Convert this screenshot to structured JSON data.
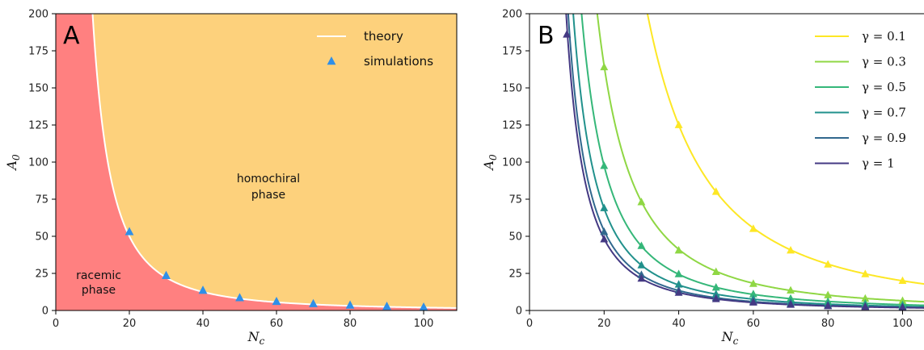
{
  "chart_data": [
    {
      "type": "line",
      "panel_label": "A",
      "xlabel": "N_c",
      "ylabel": "A_0",
      "xlim": [
        0,
        109
      ],
      "ylim": [
        0,
        200
      ],
      "xticks": [
        0,
        20,
        40,
        60,
        80,
        100
      ],
      "yticks": [
        0,
        25,
        50,
        75,
        100,
        125,
        150,
        175,
        200
      ],
      "grid": false,
      "legend_position": "top-right",
      "region_colors": {
        "racemic": "#ff8080",
        "homochiral": "#fdd17c"
      },
      "regions": {
        "racemic": [
          "racemic",
          "phase"
        ],
        "homochiral": [
          "homochiral",
          "phase"
        ]
      },
      "series": [
        {
          "name": "theory",
          "kind": "line",
          "color": "#ffffff",
          "formula": "A0 = 20000 / Nc^2"
        },
        {
          "name": "simulations",
          "kind": "scatter",
          "marker": "triangle",
          "color": "#2f8fe8",
          "x": [
            20,
            30,
            40,
            50,
            60,
            70,
            80,
            90,
            100
          ],
          "y": [
            53,
            23.5,
            13.5,
            8.5,
            6,
            4.5,
            3.5,
            2.7,
            2.2
          ]
        }
      ]
    },
    {
      "type": "line",
      "panel_label": "B",
      "xlabel": "N_c",
      "ylabel": "A_0",
      "xlim": [
        0,
        109
      ],
      "ylim": [
        0,
        200
      ],
      "xticks": [
        0,
        20,
        40,
        60,
        80,
        100
      ],
      "yticks": [
        0,
        25,
        50,
        75,
        100,
        125,
        150,
        175,
        200
      ],
      "grid": false,
      "legend_position": "top-right",
      "x": [
        10,
        20,
        30,
        40,
        50,
        60,
        70,
        80,
        90,
        100
      ],
      "series": [
        {
          "name": "γ = 0.1",
          "color": "#fde725",
          "theory_coefficient": 200000,
          "y": [
            null,
            null,
            null,
            125,
            80,
            55,
            40.5,
            31,
            24.5,
            20
          ]
        },
        {
          "name": "γ = 0.3",
          "color": "#8fd744",
          "theory_coefficient": 66000,
          "y": [
            null,
            164,
            73,
            40.5,
            26,
            18,
            13.5,
            10.3,
            8,
            6.5
          ]
        },
        {
          "name": "γ = 0.5",
          "color": "#35b779",
          "theory_coefficient": 39000,
          "y": [
            null,
            97.5,
            43.5,
            24.5,
            15.5,
            11,
            8,
            6,
            4.8,
            3.9
          ]
        },
        {
          "name": "γ = 0.7",
          "color": "#21918c",
          "theory_coefficient": 27500,
          "y": [
            null,
            69,
            30.5,
            17.5,
            11,
            7.7,
            5.6,
            4.3,
            3.4,
            2.8
          ]
        },
        {
          "name": "γ = 0.9",
          "color": "#31688e",
          "theory_coefficient": 21500,
          "y": [
            null,
            53,
            24,
            13.5,
            8.6,
            6,
            4.4,
            3.4,
            2.7,
            2.2
          ]
        },
        {
          "name": "γ = 1",
          "color": "#443983",
          "theory_coefficient": 19300,
          "y": [
            186,
            48,
            21.5,
            12,
            7.7,
            5.4,
            3.9,
            3,
            2.4,
            1.9
          ]
        }
      ]
    }
  ]
}
